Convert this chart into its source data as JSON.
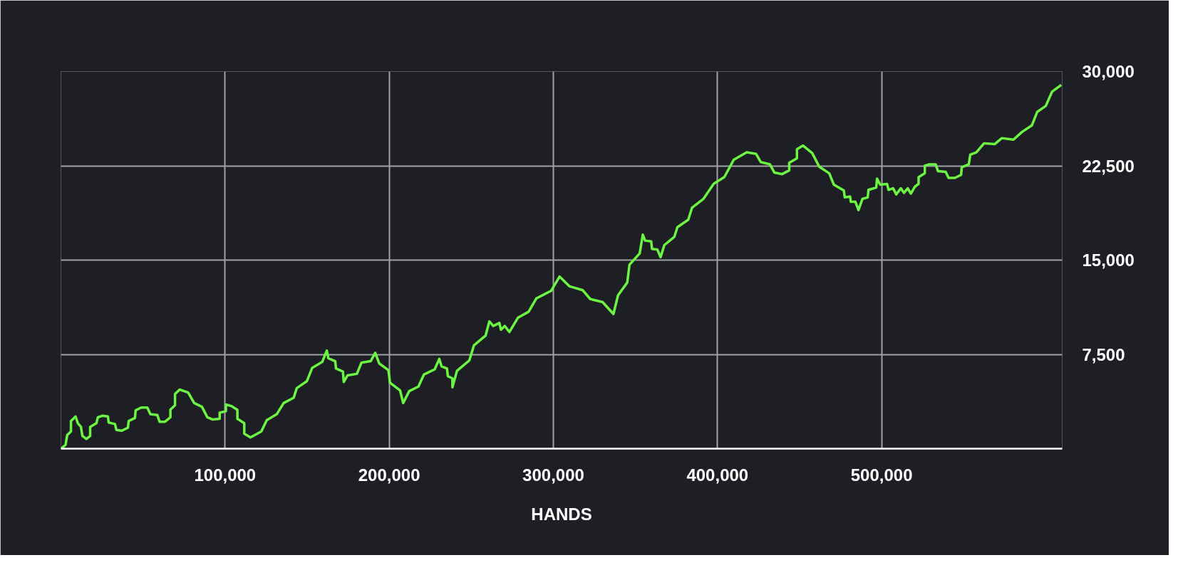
{
  "chart_data": {
    "type": "line",
    "xlabel": "HANDS",
    "xlim": [
      0,
      610000
    ],
    "ylim": [
      0,
      30000
    ],
    "xticks": [
      {
        "value": 100000,
        "label": "100,000"
      },
      {
        "value": 200000,
        "label": "200,000"
      },
      {
        "value": 300000,
        "label": "300,000"
      },
      {
        "value": 400000,
        "label": "400,000"
      },
      {
        "value": 500000,
        "label": "500,000"
      }
    ],
    "yticks": [
      {
        "value": 7500,
        "label": "7,500"
      },
      {
        "value": 15000,
        "label": "15,000"
      },
      {
        "value": 22500,
        "label": "22,500"
      },
      {
        "value": 30000,
        "label": "30,000"
      }
    ],
    "grid": true,
    "marker": "none",
    "line_style": "solid",
    "series": [
      {
        "color": "#6cf542",
        "x": [
          0,
          2800,
          3800,
          6100,
          6100,
          8900,
          10300,
          12200,
          13100,
          15500,
          17800,
          17800,
          21600,
          22500,
          25400,
          28600,
          29100,
          32900,
          33800,
          37100,
          40800,
          41300,
          45100,
          45500,
          48800,
          52600,
          54500,
          58700,
          60100,
          63400,
          66700,
          66700,
          69500,
          69500,
          72300,
          77500,
          81200,
          85900,
          89200,
          92500,
          96700,
          96700,
          100500,
          100500,
          103800,
          107500,
          107500,
          111700,
          111700,
          115500,
          122100,
          125400,
          131500,
          135700,
          141800,
          143700,
          149800,
          153100,
          159200,
          162000,
          162900,
          167100,
          167600,
          171800,
          172300,
          174600,
          180300,
          183100,
          188700,
          191500,
          193900,
          199500,
          200500,
          206600,
          208500,
          212200,
          217800,
          221100,
          227700,
          230500,
          231900,
          235200,
          235700,
          238500,
          238500,
          241300,
          248800,
          251600,
          258700,
          261000,
          263400,
          267100,
          268100,
          270400,
          273200,
          278400,
          284900,
          289700,
          298600,
          303800,
          309900,
          317800,
          322500,
          330000,
          336600,
          339400,
          345000,
          346400,
          352600,
          354500,
          355900,
          359600,
          360100,
          363400,
          365300,
          367600,
          373700,
          375600,
          382200,
          384500,
          391500,
          397700,
          404200,
          409900,
          417800,
          423500,
          426300,
          431900,
          434700,
          439400,
          443700,
          443700,
          448400,
          448400,
          452100,
          457700,
          462000,
          468100,
          470900,
          477000,
          477500,
          480800,
          481200,
          484000,
          485900,
          488300,
          491500,
          492000,
          496700,
          497200,
          499100,
          503300,
          504200,
          507000,
          508900,
          511700,
          513600,
          515900,
          517800,
          520200,
          522500,
          522500,
          526300,
          526300,
          529100,
          532900,
          534300,
          539000,
          540800,
          544600,
          548400,
          548800,
          553100,
          554000,
          557700,
          562400,
          569000,
          573200,
          580300,
          585400,
          591500,
          594800,
          600000,
          603800,
          609400
        ],
        "values": [
          0,
          300,
          1070,
          1370,
          2200,
          2560,
          2020,
          1730,
          1010,
          770,
          1010,
          1730,
          2020,
          2500,
          2620,
          2560,
          2080,
          1960,
          1490,
          1430,
          1670,
          2200,
          2440,
          3040,
          3270,
          3270,
          2740,
          2680,
          2140,
          2140,
          2500,
          3100,
          3450,
          4340,
          4700,
          4460,
          3630,
          3330,
          2500,
          2320,
          2380,
          2860,
          2980,
          3510,
          3390,
          3090,
          2380,
          2020,
          1190,
          890,
          1370,
          2260,
          2740,
          3630,
          4050,
          4820,
          5360,
          6430,
          6900,
          7800,
          7200,
          6960,
          6370,
          6130,
          5300,
          5830,
          5950,
          6840,
          6960,
          7620,
          6780,
          6250,
          5240,
          4640,
          3630,
          4580,
          4940,
          5890,
          6310,
          7140,
          6540,
          6370,
          5770,
          5590,
          4880,
          6190,
          7020,
          8210,
          8990,
          10120,
          9760,
          10000,
          9460,
          9760,
          9280,
          10410,
          10890,
          11960,
          12550,
          13690,
          12910,
          12610,
          11900,
          11660,
          10710,
          12200,
          13210,
          14640,
          15530,
          17020,
          16550,
          16490,
          15890,
          15830,
          15230,
          16190,
          16850,
          17620,
          18210,
          19170,
          19880,
          21070,
          21610,
          22980,
          23570,
          23450,
          22800,
          22620,
          21960,
          21840,
          22140,
          22740,
          23100,
          23810,
          24110,
          23510,
          22430,
          21900,
          21000,
          20530,
          19990,
          20050,
          19640,
          19640,
          18980,
          19870,
          19990,
          20590,
          20770,
          21480,
          21000,
          21060,
          20590,
          20710,
          20230,
          20710,
          20350,
          20710,
          20290,
          20830,
          21060,
          21600,
          21900,
          22500,
          22620,
          22620,
          22080,
          22020,
          21540,
          21540,
          21780,
          22380,
          22620,
          23390,
          23570,
          24290,
          24230,
          24700,
          24580,
          25180,
          25710,
          26790,
          27260,
          28390,
          28930
        ]
      }
    ]
  }
}
